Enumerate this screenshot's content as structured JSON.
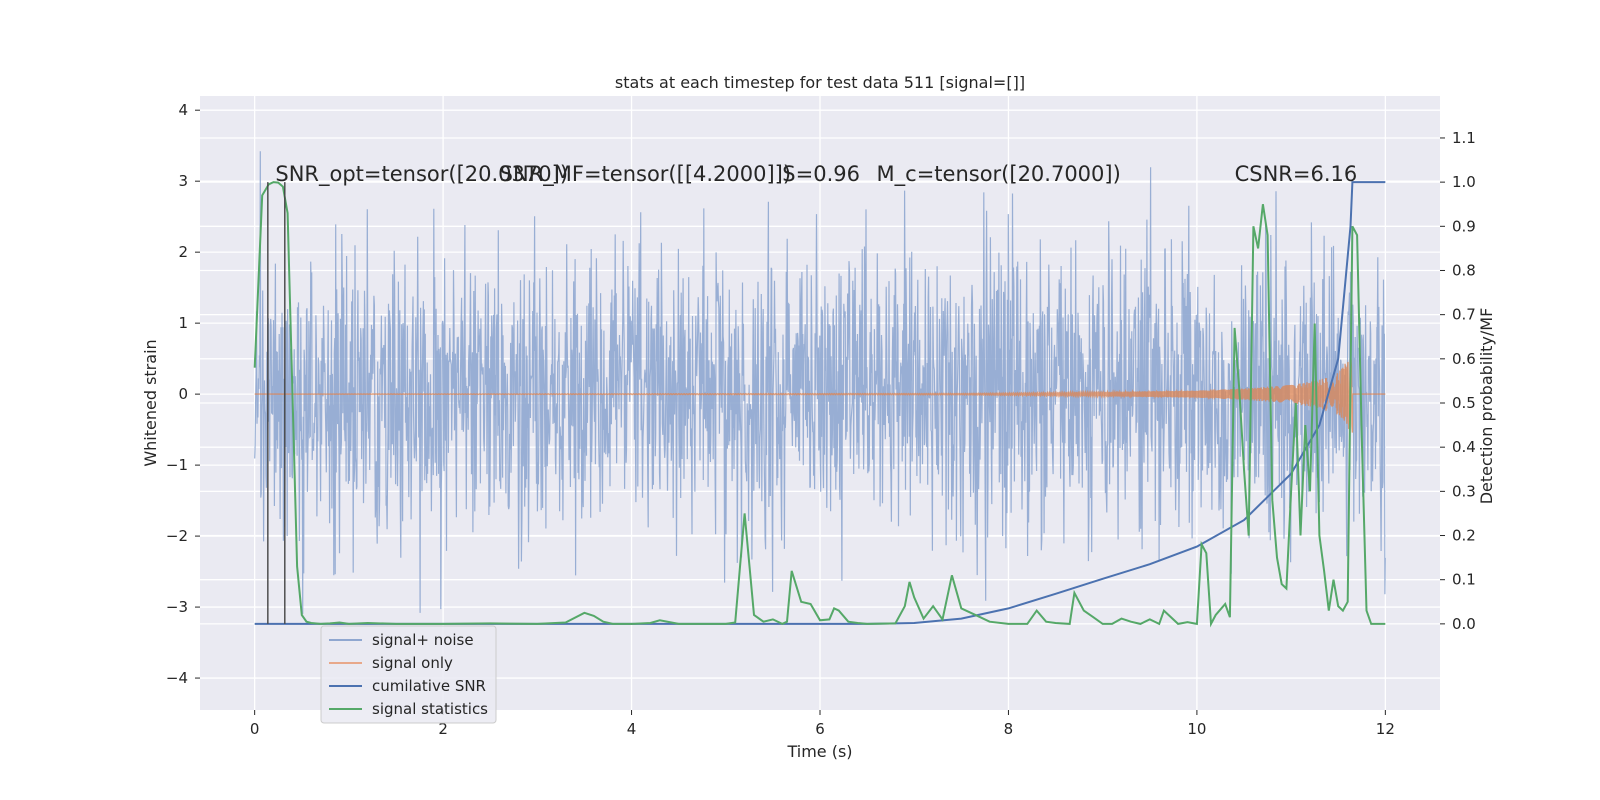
{
  "chart_data": {
    "type": "line",
    "title": "stats at each timestep for test data 511 [signal=[]]",
    "xlabel": "Time (s)",
    "ylabel": "Whitened strain",
    "y2label": "Detection probability/MF",
    "xlim": [
      -0.58,
      12.58
    ],
    "ylim": [
      -4.45,
      4.2
    ],
    "y2lim": [
      -0.195,
      1.195
    ],
    "xticks": [
      0,
      2,
      4,
      6,
      8,
      10,
      12
    ],
    "yticks": [
      -4,
      -3,
      -2,
      -1,
      0,
      1,
      2,
      3,
      4
    ],
    "y2ticks": [
      0.0,
      0.1,
      0.2,
      0.3,
      0.4,
      0.5,
      0.6,
      0.7,
      0.8,
      0.9,
      1.0,
      1.1
    ],
    "xtick_labels": [
      "0",
      "2",
      "4",
      "6",
      "8",
      "10",
      "12"
    ],
    "ytick_labels": [
      "−4",
      "−3",
      "−2",
      "−1",
      "0",
      "1",
      "2",
      "3",
      "4"
    ],
    "y2tick_labels": [
      "0.0",
      "0.1",
      "0.2",
      "0.3",
      "0.4",
      "0.5",
      "0.6",
      "0.7",
      "0.8",
      "0.9",
      "1.0",
      "1.1"
    ],
    "grid": true,
    "legend_position": "lower-left",
    "annotations": [
      {
        "text": "SNR_opt=tensor([20.0370])",
        "x": 0.22,
        "y": 3.0
      },
      {
        "text": "SNR_MF=tensor([[4.2000]])",
        "x": 2.6,
        "y": 3.0
      },
      {
        "text": "S=0.96",
        "x": 5.6,
        "y": 3.0
      },
      {
        "text": "M_c=tensor([20.7000])",
        "x": 6.6,
        "y": 3.0
      },
      {
        "text": "CSNR=6.16",
        "x": 10.4,
        "y": 3.0
      }
    ],
    "vlines": [
      0.14,
      0.32
    ],
    "series": [
      {
        "name": "signal+ noise",
        "color": "#8fa7d0",
        "axis": "left",
        "kind": "noise",
        "x_range": [
          0,
          12
        ],
        "std": 0.75,
        "peak_max": 3.58,
        "peak_min": -4.08
      },
      {
        "name": "signal only",
        "color": "#dd8452",
        "axis": "left",
        "kind": "chirp",
        "x_range": [
          0,
          11.65
        ],
        "envelope": [
          [
            0,
            0.0
          ],
          [
            7.5,
            0.01
          ],
          [
            9,
            0.03
          ],
          [
            10,
            0.05
          ],
          [
            10.5,
            0.08
          ],
          [
            11,
            0.13
          ],
          [
            11.3,
            0.2
          ],
          [
            11.5,
            0.3
          ],
          [
            11.6,
            0.5
          ],
          [
            11.65,
            0.65
          ]
        ]
      },
      {
        "name": "cumilative SNR",
        "color": "#4c72b0",
        "axis": "right",
        "x": [
          0,
          6.5,
          7.0,
          7.5,
          8.0,
          8.5,
          9.0,
          9.5,
          10.0,
          10.5,
          11.0,
          11.3,
          11.5,
          11.63,
          11.65,
          12.0
        ],
        "y": [
          0.0,
          0.0,
          0.002,
          0.012,
          0.035,
          0.068,
          0.102,
          0.135,
          0.175,
          0.235,
          0.34,
          0.45,
          0.6,
          0.9,
          1.0,
          1.0
        ]
      },
      {
        "name": "signal statistics",
        "color": "#55a868",
        "axis": "right",
        "x": [
          0,
          0.08,
          0.15,
          0.2,
          0.25,
          0.3,
          0.35,
          0.45,
          0.5,
          0.55,
          0.6,
          0.7,
          0.8,
          0.9,
          1.0,
          1.2,
          1.5,
          2.0,
          2.5,
          3.0,
          3.3,
          3.5,
          3.6,
          3.7,
          3.8,
          4.0,
          4.2,
          4.3,
          4.5,
          5.0,
          5.1,
          5.2,
          5.3,
          5.4,
          5.5,
          5.6,
          5.65,
          5.7,
          5.8,
          5.9,
          6.0,
          6.1,
          6.15,
          6.2,
          6.3,
          6.4,
          6.5,
          6.8,
          6.9,
          6.95,
          7.0,
          7.1,
          7.2,
          7.3,
          7.35,
          7.4,
          7.5,
          7.6,
          7.7,
          7.8,
          8.0,
          8.2,
          8.3,
          8.4,
          8.5,
          8.65,
          8.7,
          8.8,
          8.9,
          9.0,
          9.1,
          9.2,
          9.3,
          9.4,
          9.5,
          9.6,
          9.65,
          9.7,
          9.8,
          9.9,
          10.0,
          10.05,
          10.1,
          10.15,
          10.2,
          10.3,
          10.35,
          10.4,
          10.45,
          10.5,
          10.55,
          10.6,
          10.65,
          10.7,
          10.75,
          10.8,
          10.85,
          10.9,
          10.95,
          11.0,
          11.05,
          11.1,
          11.15,
          11.2,
          11.25,
          11.3,
          11.35,
          11.4,
          11.45,
          11.5,
          11.55,
          11.6,
          11.65,
          11.7,
          11.75,
          11.8,
          11.85,
          11.9,
          12.0
        ],
        "y": [
          0.58,
          0.97,
          0.995,
          1.0,
          0.999,
          0.99,
          0.93,
          0.13,
          0.02,
          0.005,
          0.002,
          0.0,
          0.001,
          0.003,
          0.0,
          0.002,
          0.0,
          0.0,
          0.001,
          0.0,
          0.003,
          0.025,
          0.018,
          0.005,
          0.0,
          0.0,
          0.002,
          0.008,
          0.0,
          0.0,
          0.003,
          0.25,
          0.02,
          0.005,
          0.01,
          0.0,
          0.005,
          0.12,
          0.05,
          0.045,
          0.008,
          0.01,
          0.035,
          0.03,
          0.005,
          0.002,
          0.0,
          0.001,
          0.04,
          0.095,
          0.06,
          0.012,
          0.04,
          0.01,
          0.06,
          0.11,
          0.035,
          0.025,
          0.015,
          0.005,
          0.0,
          0.0,
          0.03,
          0.005,
          0.002,
          0.0,
          0.07,
          0.03,
          0.015,
          0.0,
          0.0,
          0.012,
          0.005,
          0.0,
          0.01,
          0.0,
          0.03,
          0.02,
          0.0,
          0.004,
          0.0,
          0.18,
          0.16,
          0.0,
          0.02,
          0.045,
          0.015,
          0.67,
          0.53,
          0.35,
          0.2,
          0.9,
          0.85,
          0.95,
          0.88,
          0.28,
          0.15,
          0.09,
          0.08,
          0.3,
          0.5,
          0.2,
          0.45,
          0.3,
          0.68,
          0.2,
          0.12,
          0.03,
          0.1,
          0.04,
          0.03,
          0.05,
          0.9,
          0.88,
          0.42,
          0.03,
          0.0,
          0.0,
          0.0
        ]
      }
    ]
  }
}
